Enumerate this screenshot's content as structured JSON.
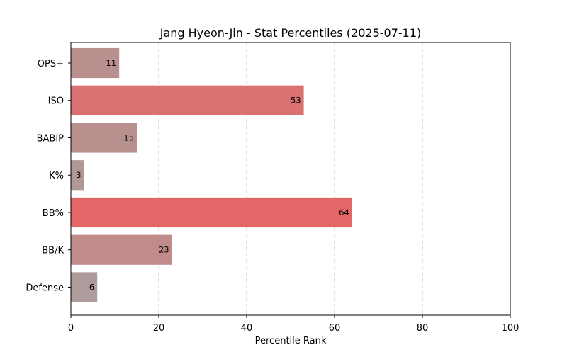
{
  "chart_data": {
    "type": "bar",
    "orientation": "horizontal",
    "title": "Jang Hyeon-Jin - Stat Percentiles (2025-07-11)",
    "xlabel": "Percentile Rank",
    "ylabel": "",
    "xlim": [
      0,
      100
    ],
    "xticks": [
      0,
      20,
      40,
      60,
      80,
      100
    ],
    "grid": "vertical-dashed",
    "categories": [
      "OPS+",
      "ISO",
      "BABIP",
      "K%",
      "BB%",
      "BB/K",
      "Defense"
    ],
    "values": [
      11,
      53,
      15,
      3,
      64,
      23,
      6
    ],
    "value_labels": [
      "11",
      "53",
      "15",
      "3",
      "64",
      "23",
      "6"
    ],
    "bar_colors": [
      "#b8918f",
      "#d97270",
      "#b8918f",
      "#b09896",
      "#e26766",
      "#c08b89",
      "#ad9c9b"
    ]
  }
}
